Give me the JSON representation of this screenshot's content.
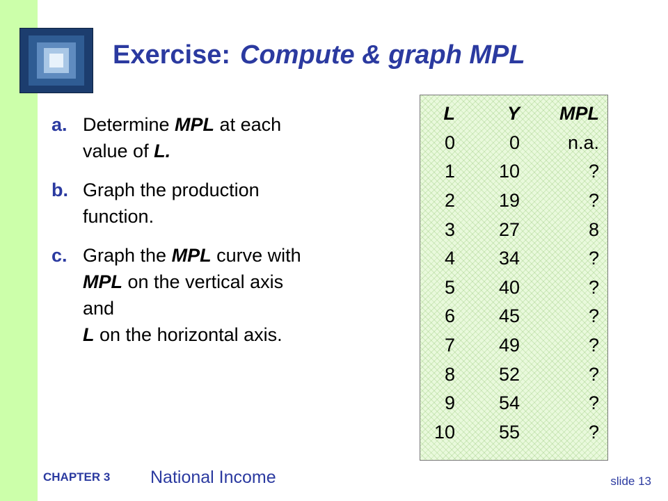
{
  "title": {
    "main": "Exercise:",
    "sub": "Compute & graph MPL"
  },
  "items": [
    {
      "marker": "a.",
      "line1_pre": "Determine ",
      "line1_bold": "MPL",
      "line1_post": " at each",
      "line2_pre": "value of ",
      "line2_bold": "L."
    },
    {
      "marker": "b.",
      "line1": "Graph the production",
      "line2": "function."
    },
    {
      "marker": "c.",
      "line1_pre": "Graph the ",
      "line1_bold": "MPL",
      "line1_post": " curve with",
      "line2_bold": "MPL",
      "line2_post": " on the vertical axis",
      "line3": "and",
      "line4_bold": "L",
      "line4_post": " on the horizontal axis."
    }
  ],
  "table": {
    "headers": [
      "L",
      "Y",
      "MPL"
    ],
    "rows": [
      [
        "0",
        "0",
        "n.a."
      ],
      [
        "1",
        "10",
        "?"
      ],
      [
        "2",
        "19",
        "?"
      ],
      [
        "3",
        "27",
        "8"
      ],
      [
        "4",
        "34",
        "?"
      ],
      [
        "5",
        "40",
        "?"
      ],
      [
        "6",
        "45",
        "?"
      ],
      [
        "7",
        "49",
        "?"
      ],
      [
        "8",
        "52",
        "?"
      ],
      [
        "9",
        "54",
        "?"
      ],
      [
        "10",
        "55",
        "?"
      ]
    ]
  },
  "footer": {
    "chapter": "CHAPTER 3",
    "course": "National Income",
    "slide": "slide 13"
  },
  "colors": {
    "accent": "#2b3aa0",
    "band": "#ccffaa",
    "table_bg": "#e9f9dc"
  }
}
